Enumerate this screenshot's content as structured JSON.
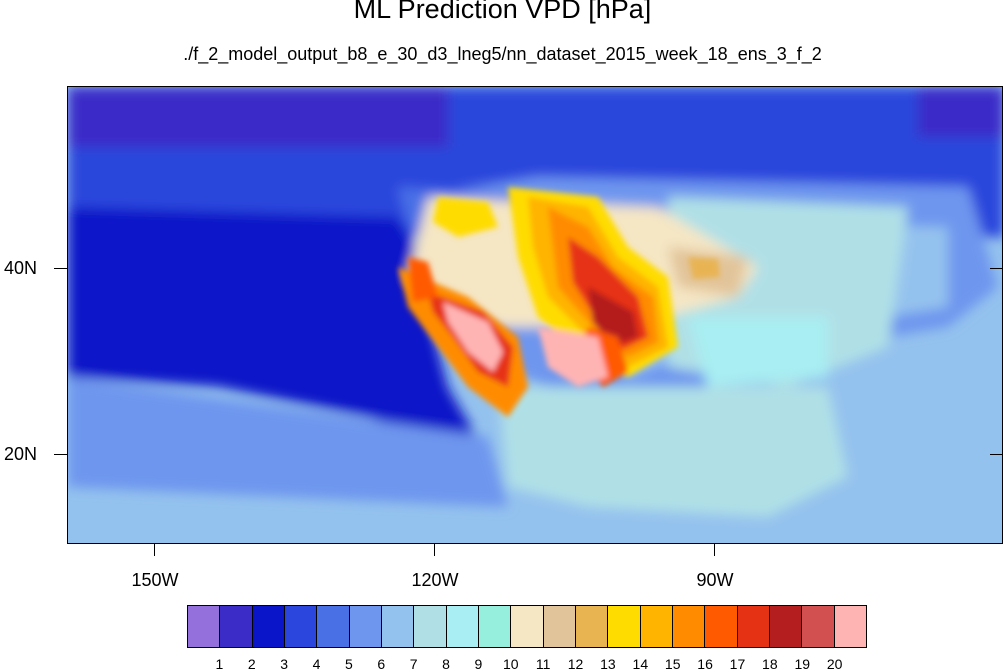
{
  "title": "ML Prediction VPD [hPa]",
  "subtitle": "./f_2_model_output_b8_e_30_d3_lneg5/nn_dataset_2015_week_18_ens_3_f_2",
  "lat_labels": [
    "40N",
    "20N"
  ],
  "lon_labels": [
    "150W",
    "120W",
    "90W"
  ],
  "colorbar": {
    "colors": [
      "#9370db",
      "#3b2cc8",
      "#0a14c8",
      "#2a46dc",
      "#4a70e6",
      "#6e96ee",
      "#94c2ee",
      "#b0e0e6",
      "#a8eef2",
      "#96eedc",
      "#f5e6c4",
      "#e2c49a",
      "#e8b452",
      "#ffdc00",
      "#ffb400",
      "#ff8c00",
      "#ff5a00",
      "#e63214",
      "#b41e1e",
      "#d25050",
      "#ffb4b4"
    ],
    "labels": [
      "1",
      "2",
      "3",
      "4",
      "5",
      "6",
      "7",
      "8",
      "9",
      "10",
      "11",
      "12",
      "13",
      "14",
      "15",
      "16",
      "17",
      "18",
      "19",
      "20"
    ]
  }
}
